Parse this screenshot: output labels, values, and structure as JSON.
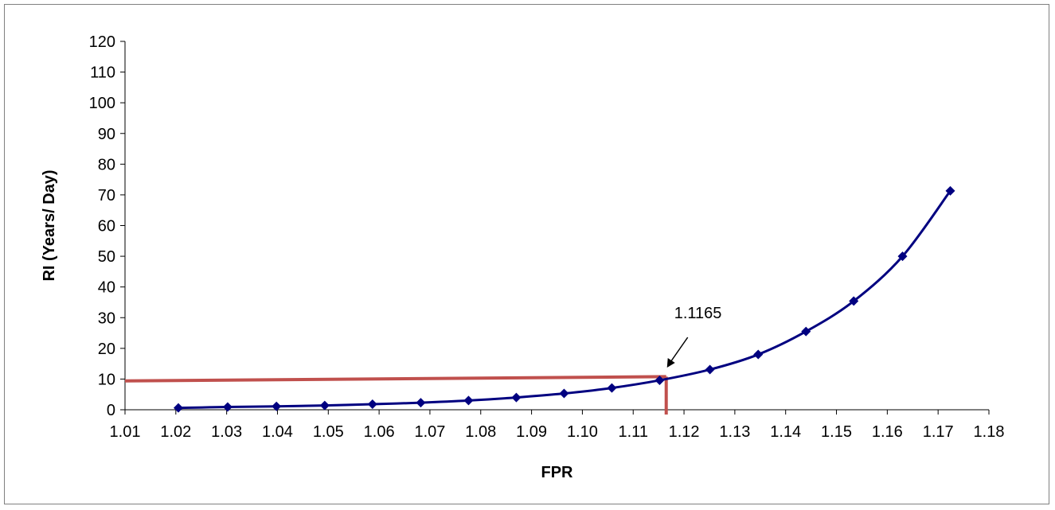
{
  "chart_data": {
    "type": "line",
    "title": "",
    "xlabel": "FPR",
    "ylabel": "RI (Years/ Day)",
    "xlim": [
      1.01,
      1.18
    ],
    "ylim": [
      0,
      120
    ],
    "x_ticks": [
      "1.01",
      "1.02",
      "1.03",
      "1.04",
      "1.05",
      "1.06",
      "1.07",
      "1.08",
      "1.09",
      "1.10",
      "1.11",
      "1.12",
      "1.13",
      "1.14",
      "1.15",
      "1.16",
      "1.17",
      "1.18"
    ],
    "y_ticks": [
      "0",
      "10",
      "20",
      "30",
      "40",
      "50",
      "60",
      "70",
      "80",
      "90",
      "100",
      "110",
      "120"
    ],
    "grid": false,
    "series": [
      {
        "x": [
          1.0205,
          1.0302,
          1.0398,
          1.0493,
          1.0587,
          1.0682,
          1.0776,
          1.087,
          1.0964,
          1.1058,
          1.1152,
          1.1251,
          1.1346,
          1.144,
          1.1534,
          1.163,
          1.1724
        ],
        "y": [
          0.6,
          0.9,
          1.1,
          1.4,
          1.8,
          2.3,
          3.0,
          4.0,
          5.3,
          7.1,
          9.6,
          13.1,
          18.0,
          25.5,
          35.4,
          50.0,
          71.3
        ],
        "color": "#000080",
        "marker": "diamond"
      }
    ],
    "reference": {
      "x": 1.1165,
      "y": 10,
      "color": "#C0504D"
    },
    "annotation": {
      "text": "1.1165",
      "x": 1.1165
    }
  }
}
